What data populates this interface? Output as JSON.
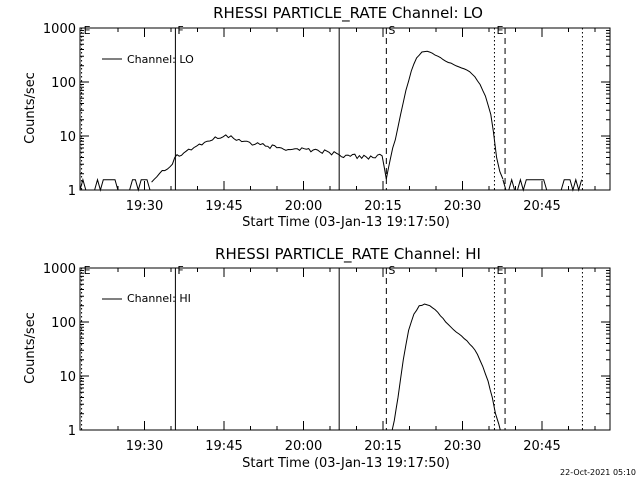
{
  "footer": {
    "timestamp": "22-Oct-2021 05:10"
  },
  "chart_data": [
    {
      "type": "line",
      "title": "RHESSI PARTICLE_RATE Channel: LO",
      "xlabel": "Start Time (03-Jan-13 19:17:50)",
      "ylabel": "Counts/sec",
      "x_unit": "minutes since 19:17:50",
      "xlim": [
        0,
        100
      ],
      "ylim": [
        1,
        1000
      ],
      "yscale": "log",
      "xticks": [
        {
          "x": 12.17,
          "label": "19:30"
        },
        {
          "x": 27.17,
          "label": "19:45"
        },
        {
          "x": 42.17,
          "label": "20:00"
        },
        {
          "x": 57.17,
          "label": "20:15"
        },
        {
          "x": 72.17,
          "label": "20:30"
        },
        {
          "x": 87.17,
          "label": "20:45"
        }
      ],
      "yticks": [
        {
          "y": 1,
          "label": "1"
        },
        {
          "y": 10,
          "label": "10"
        },
        {
          "y": 100,
          "label": "100"
        },
        {
          "y": 1000,
          "label": "1000"
        }
      ],
      "legend": {
        "label": "Channel: LO",
        "position": "top-left"
      },
      "markers": [
        {
          "x": 0.3,
          "label": "E",
          "style": "dotted"
        },
        {
          "x": 18.0,
          "label": "F",
          "style": "solid"
        },
        {
          "x": 48.9,
          "label": "",
          "style": "solid"
        },
        {
          "x": 57.8,
          "label": "S",
          "style": "dashed"
        },
        {
          "x": 78.2,
          "label": "E",
          "style": "dotted"
        },
        {
          "x": 80.2,
          "label": "",
          "style": "dashed"
        },
        {
          "x": 94.8,
          "label": "",
          "style": "dotted"
        }
      ],
      "series": [
        {
          "noise_segments": [
            [
              0,
              13.5
            ],
            [
              79.8,
              94.8
            ]
          ],
          "x": [
            13.5,
            15.5,
            17.0,
            18.3,
            20.0,
            22.0,
            24.0,
            26.0,
            27.5,
            29.0,
            31.0,
            33.0,
            35.0,
            38.0,
            41.0,
            44.0,
            47.0,
            48.9,
            51.0,
            54.0,
            57.0,
            57.8,
            58.5,
            59.5,
            60.5,
            61.5,
            62.5,
            63.5,
            64.5,
            65.5,
            66.5,
            67.5,
            68.5,
            69.5,
            70.5,
            71.5,
            72.5,
            73.5,
            74.5,
            75.5,
            76.5,
            77.5,
            78.0,
            78.6,
            79.2,
            79.8
          ],
          "values": [
            1.4,
            2.3,
            2.7,
            4.5,
            5.2,
            6.5,
            8.0,
            9.0,
            10.5,
            9.0,
            8.0,
            7.0,
            6.5,
            6.0,
            5.8,
            5.5,
            5.0,
            4.5,
            4.2,
            4.1,
            4.3,
            1.6,
            3.5,
            8.5,
            25.0,
            70.0,
            160.0,
            280.0,
            360.0,
            370.0,
            340.0,
            300.0,
            260.0,
            230.0,
            210.0,
            190.0,
            175.0,
            155.0,
            125.0,
            90.0,
            55.0,
            25.0,
            12.0,
            4.0,
            2.2,
            1.6
          ]
        }
      ]
    },
    {
      "type": "line",
      "title": "RHESSI PARTICLE_RATE Channel: HI",
      "xlabel": "Start Time (03-Jan-13 19:17:50)",
      "ylabel": "Counts/sec",
      "x_unit": "minutes since 19:17:50",
      "xlim": [
        0,
        100
      ],
      "ylim": [
        1,
        1000
      ],
      "yscale": "log",
      "xticks": [
        {
          "x": 12.17,
          "label": "19:30"
        },
        {
          "x": 27.17,
          "label": "19:45"
        },
        {
          "x": 42.17,
          "label": "20:00"
        },
        {
          "x": 57.17,
          "label": "20:15"
        },
        {
          "x": 72.17,
          "label": "20:30"
        },
        {
          "x": 87.17,
          "label": "20:45"
        }
      ],
      "yticks": [
        {
          "y": 1,
          "label": "1"
        },
        {
          "y": 10,
          "label": "10"
        },
        {
          "y": 100,
          "label": "100"
        },
        {
          "y": 1000,
          "label": "1000"
        }
      ],
      "legend": {
        "label": "Channel: HI",
        "position": "top-left"
      },
      "markers": [
        {
          "x": 0.3,
          "label": "E",
          "style": "dotted"
        },
        {
          "x": 18.0,
          "label": "F",
          "style": "solid"
        },
        {
          "x": 48.9,
          "label": "",
          "style": "solid"
        },
        {
          "x": 57.8,
          "label": "S",
          "style": "dashed"
        },
        {
          "x": 78.2,
          "label": "E",
          "style": "dotted"
        },
        {
          "x": 80.2,
          "label": "",
          "style": "dashed"
        },
        {
          "x": 94.8,
          "label": "",
          "style": "dotted"
        }
      ],
      "series": [
        {
          "noise_segments": [],
          "x": [
            58.9,
            59.3,
            60.0,
            61.0,
            62.0,
            63.0,
            64.0,
            65.0,
            66.0,
            67.0,
            68.0,
            69.0,
            70.0,
            71.0,
            72.0,
            73.0,
            74.0,
            75.0,
            76.0,
            77.0,
            77.8,
            78.4,
            79.0,
            79.3
          ],
          "values": [
            1.0,
            1.5,
            4.0,
            20.0,
            70.0,
            140.0,
            200.0,
            215.0,
            200.0,
            170.0,
            130.0,
            100.0,
            80.0,
            65.0,
            55.0,
            45.0,
            35.0,
            25.0,
            15.0,
            8.0,
            4.0,
            2.0,
            1.3,
            1.0
          ]
        }
      ]
    }
  ]
}
